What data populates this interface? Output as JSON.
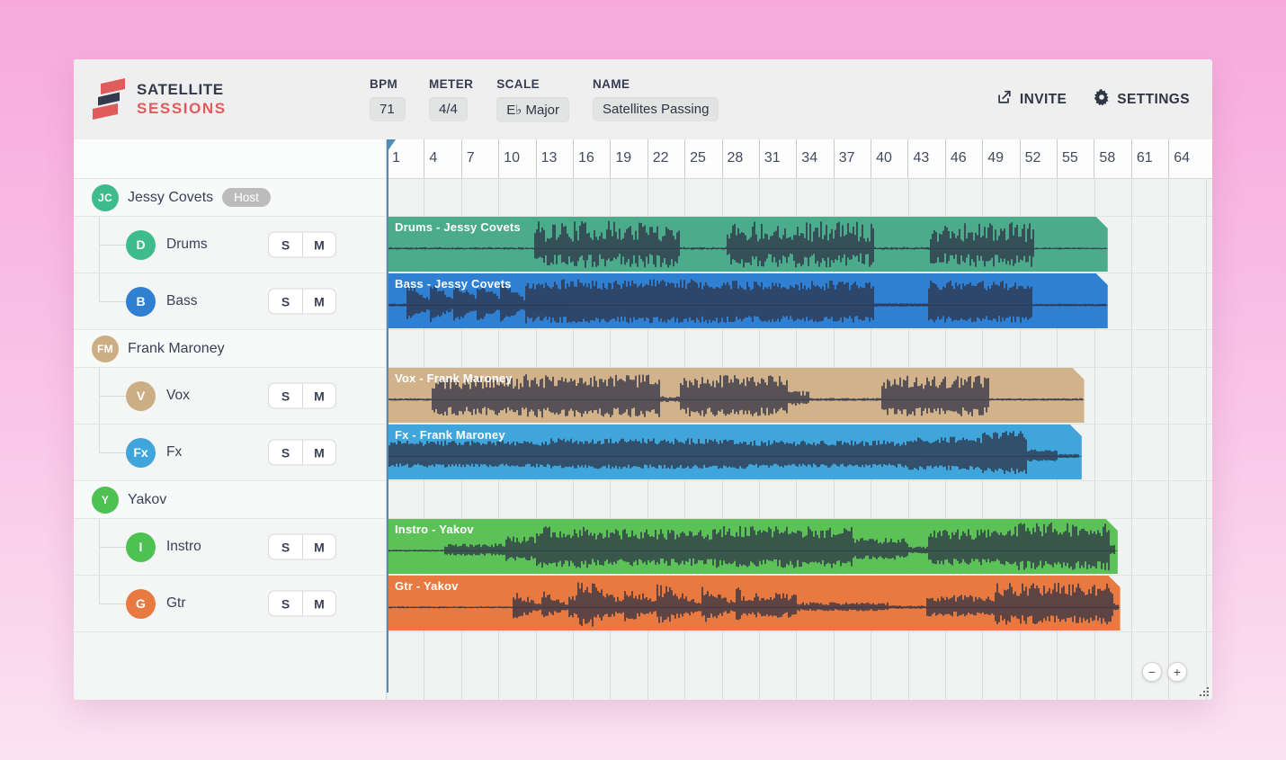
{
  "brand": {
    "line1": "SATELLITE",
    "line2": "SESSIONS",
    "coral": "#e05c5c",
    "navy": "#333a4d"
  },
  "header": {
    "fields": [
      {
        "label": "BPM",
        "value": "71"
      },
      {
        "label": "METER",
        "value": "4/4"
      },
      {
        "label": "SCALE",
        "value": "E♭ Major"
      },
      {
        "label": "NAME",
        "value": "Satellites Passing"
      }
    ],
    "actions": [
      {
        "label": "INVITE",
        "icon": "share-icon"
      },
      {
        "label": "SETTINGS",
        "icon": "gear-icon"
      }
    ]
  },
  "track_controls": {
    "solo": "S",
    "mute": "M"
  },
  "timeline": {
    "ruler_numbers": [
      1,
      4,
      7,
      10,
      13,
      16,
      19,
      22,
      25,
      28,
      31,
      34,
      37,
      40,
      43,
      46,
      49,
      52,
      55,
      58,
      61,
      64
    ],
    "bars_per_division": 3,
    "playhead": {
      "bar": 1,
      "color": "#4f8cb7"
    },
    "waveform_color": "#2d3145"
  },
  "participants": [
    {
      "name": "Jessy Covets",
      "initials": "JC",
      "color": "#3fbc8e",
      "badge": "Host",
      "tracks": [
        {
          "name": "Drums",
          "initial": "D",
          "color": "#3fbc8e",
          "clip": {
            "label": "Drums - Jessy Covets",
            "color": "#4cab8b",
            "start_bar": 1,
            "end_bar": 59.1,
            "seed": 11,
            "jitter": 0.75,
            "envelope": [
              [
                1,
                12.9,
                0.05
              ],
              [
                12.9,
                24.6,
                0.95
              ],
              [
                24.6,
                28.4,
                0.06
              ],
              [
                28.4,
                40.3,
                0.95
              ],
              [
                40.3,
                44.7,
                0.06
              ],
              [
                44.7,
                53.2,
                0.9
              ],
              [
                53.2,
                59.1,
                0.04
              ]
            ]
          }
        },
        {
          "name": "Bass",
          "initial": "B",
          "color": "#2f80d2",
          "clip": {
            "label": "Bass - Jessy Covets",
            "color": "#2f80d2",
            "start_bar": 1,
            "end_bar": 59.1,
            "seed": 22,
            "jitter": 0.4,
            "envelope": [
              [
                1,
                2.6,
                0.06
              ],
              [
                2.6,
                12.2,
                0.9,
                1.9
              ],
              [
                12.2,
                28.3,
                0.9
              ],
              [
                28.3,
                40.3,
                0.85
              ],
              [
                40.3,
                44.6,
                0.07
              ],
              [
                44.6,
                53,
                0.85
              ],
              [
                53,
                59.1,
                0.05
              ]
            ]
          }
        }
      ]
    },
    {
      "name": "Frank Maroney",
      "initials": "FM",
      "color": "#ccae85",
      "badge": null,
      "tracks": [
        {
          "name": "Vox",
          "initial": "V",
          "color": "#ccae85",
          "clip": {
            "label": "Vox - Frank Maroney",
            "color": "#d1b28b",
            "start_bar": 1,
            "end_bar": 57.2,
            "seed": 33,
            "jitter": 0.55,
            "envelope": [
              [
                1,
                4.6,
                0.05
              ],
              [
                4.6,
                12,
                0.78
              ],
              [
                12,
                23.1,
                0.88
              ],
              [
                23.1,
                24.6,
                0.12
              ],
              [
                24.6,
                33.3,
                0.84
              ],
              [
                33.3,
                35,
                0.3
              ],
              [
                35,
                40.8,
                0.06
              ],
              [
                40.8,
                49.6,
                0.82
              ],
              [
                49.6,
                57.2,
                0.05
              ]
            ]
          }
        },
        {
          "name": "Fx",
          "initial": "Fx",
          "color": "#3fa5da",
          "clip": {
            "label": "Fx - Frank Maroney",
            "color": "#3fa5da",
            "start_bar": 1,
            "end_bar": 57.0,
            "seed": 44,
            "jitter": 0.35,
            "envelope": [
              [
                1,
                14,
                0.55
              ],
              [
                14,
                30,
                0.62
              ],
              [
                30,
                43,
                0.55
              ],
              [
                43,
                49,
                0.68
              ],
              [
                49,
                52.6,
                0.88
              ],
              [
                52.6,
                55,
                0.25
              ],
              [
                55,
                57,
                0.08
              ]
            ]
          }
        }
      ]
    },
    {
      "name": "Yakov",
      "initials": "Y",
      "color": "#4ec153",
      "badge": null,
      "tracks": [
        {
          "name": "Instro",
          "initial": "I",
          "color": "#4ec153",
          "clip": {
            "label": "Instro - Yakov",
            "color": "#5cc257",
            "start_bar": 1,
            "end_bar": 59.9,
            "seed": 55,
            "jitter": 0.5,
            "envelope": [
              [
                1,
                5.6,
                0.04
              ],
              [
                5.6,
                10.5,
                0.25
              ],
              [
                10.5,
                13,
                0.5
              ],
              [
                13,
                17.5,
                0.85
              ],
              [
                17.5,
                27.5,
                0.75
              ],
              [
                27.5,
                38.5,
                0.85
              ],
              [
                38.5,
                43,
                0.45
              ],
              [
                43,
                44.6,
                0.15
              ],
              [
                44.6,
                51.5,
                0.75
              ],
              [
                51.5,
                59.3,
                0.97
              ],
              [
                59.3,
                59.9,
                0.2
              ]
            ]
          }
        },
        {
          "name": "Gtr",
          "initial": "G",
          "color": "#e87940",
          "clip": {
            "label": "Gtr - Yakov",
            "color": "#e87940",
            "start_bar": 1,
            "end_bar": 60.1,
            "seed": 66,
            "jitter": 0.55,
            "envelope": [
              [
                1,
                11.2,
                0.04
              ],
              [
                11.2,
                16.3,
                0.6,
                2.2
              ],
              [
                16.3,
                17.6,
                1.0
              ],
              [
                17.6,
                23.5,
                0.85,
                2.6
              ],
              [
                23.5,
                29.5,
                0.8,
                2.8
              ],
              [
                29.5,
                34,
                0.5
              ],
              [
                34,
                41.5,
                0.18
              ],
              [
                41.5,
                44.5,
                0.07
              ],
              [
                44.5,
                50,
                0.45
              ],
              [
                50,
                59.5,
                0.85
              ],
              [
                59.5,
                60.1,
                0.15
              ]
            ]
          }
        }
      ]
    }
  ],
  "zoom_controls": {
    "zoom_out": "−",
    "zoom_in": "+"
  }
}
